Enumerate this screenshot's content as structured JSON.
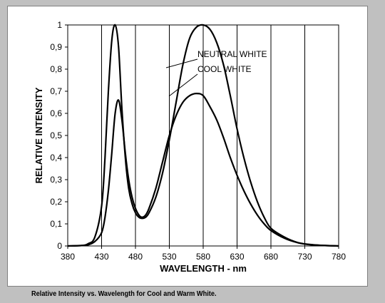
{
  "caption": "Relative Intensity vs. Wavelength for Cool and Warm White.",
  "chart_data": {
    "type": "line",
    "title": "",
    "xlabel": "WAVELENGTH - nm",
    "ylabel": "RELATIVE INTENSITY",
    "xlim": [
      380,
      780
    ],
    "ylim": [
      0,
      1
    ],
    "x_ticks": [
      "380",
      "430",
      "480",
      "530",
      "580",
      "630",
      "680",
      "730",
      "780"
    ],
    "y_ticks": [
      "0",
      "0,1",
      "0,2",
      "0,3",
      "0,4",
      "0,5",
      "0,6",
      "0,7",
      "0,8",
      "0,9",
      "1"
    ],
    "grid": "vertical",
    "legend": "none",
    "line_color": "#000000",
    "x": [
      380,
      400,
      410,
      420,
      430,
      435,
      440,
      445,
      450,
      455,
      460,
      465,
      470,
      475,
      480,
      485,
      490,
      495,
      500,
      510,
      520,
      530,
      540,
      550,
      560,
      570,
      580,
      590,
      600,
      610,
      620,
      630,
      640,
      650,
      660,
      670,
      680,
      700,
      720,
      740,
      760,
      780
    ],
    "series": [
      {
        "name": "NEUTRAL WHITE",
        "values": [
          0,
          0.002,
          0.01,
          0.04,
          0.18,
          0.4,
          0.7,
          0.93,
          1.0,
          0.9,
          0.62,
          0.4,
          0.26,
          0.19,
          0.15,
          0.13,
          0.125,
          0.13,
          0.15,
          0.22,
          0.33,
          0.48,
          0.65,
          0.82,
          0.94,
          0.99,
          1.0,
          0.98,
          0.92,
          0.82,
          0.68,
          0.53,
          0.4,
          0.29,
          0.2,
          0.13,
          0.08,
          0.04,
          0.015,
          0.005,
          0.002,
          0
        ]
      },
      {
        "name": "COOL WHITE",
        "values": [
          0,
          0.002,
          0.005,
          0.02,
          0.06,
          0.13,
          0.25,
          0.42,
          0.6,
          0.66,
          0.57,
          0.42,
          0.3,
          0.22,
          0.17,
          0.14,
          0.13,
          0.14,
          0.17,
          0.26,
          0.38,
          0.5,
          0.59,
          0.65,
          0.68,
          0.69,
          0.68,
          0.63,
          0.57,
          0.49,
          0.4,
          0.32,
          0.25,
          0.19,
          0.14,
          0.1,
          0.07,
          0.035,
          0.015,
          0.006,
          0.002,
          0
        ]
      }
    ]
  }
}
